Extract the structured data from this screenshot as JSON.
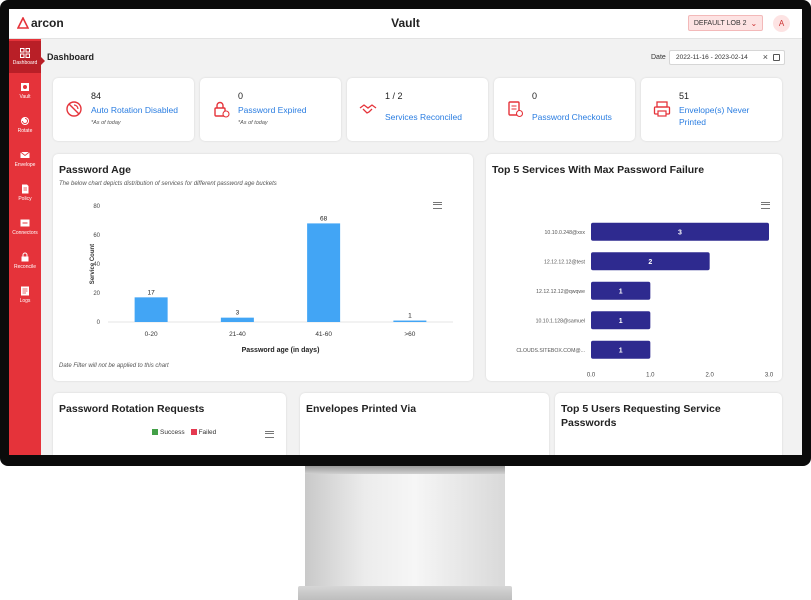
{
  "topbar": {
    "logo_text": "arcon",
    "title": "Vault",
    "lob_value": "DEFAULT LOB 2",
    "avatar_initial": "A"
  },
  "sidebar": {
    "items": [
      {
        "label": "Dashboard",
        "icon": "grid-icon"
      },
      {
        "label": "Vault",
        "icon": "vault-icon"
      },
      {
        "label": "Rotate",
        "icon": "rotate-icon"
      },
      {
        "label": "Envelope",
        "icon": "envelope-icon"
      },
      {
        "label": "Policy",
        "icon": "policy-icon"
      },
      {
        "label": "Connectors",
        "icon": "connectors-icon"
      },
      {
        "label": "Reconcile",
        "icon": "lock-icon"
      },
      {
        "label": "Logs",
        "icon": "logs-icon"
      }
    ]
  },
  "breadcrumb": "Dashboard",
  "date_filter": {
    "label": "Date",
    "value": "2022-11-16 - 2023-02-14"
  },
  "stats": [
    {
      "value": "84",
      "title": "Auto Rotation Disabled",
      "note": "*As of today",
      "icon": "no-rotation-icon"
    },
    {
      "value": "0",
      "title": "Password Expired",
      "note": "*As of today",
      "icon": "expired-lock-icon"
    },
    {
      "value": "1 / 2",
      "title": "Services Reconciled",
      "note": "",
      "icon": "handshake-icon"
    },
    {
      "value": "0",
      "title": "Password Checkouts",
      "note": "",
      "icon": "checkout-icon"
    },
    {
      "value": "51",
      "title": "Envelope(s) Never Printed",
      "note": "",
      "icon": "printer-icon"
    }
  ],
  "password_age": {
    "title": "Password Age",
    "subtitle": "The below chart depicts distribution of services for different password age buckets",
    "footnote": "Date Filter will not be applied to this chart"
  },
  "top_services": {
    "title": "Top 5 Services With Max Password Failure"
  },
  "bottom_panels": {
    "rotation_title": "Password Rotation Requests",
    "legend_success": "Success",
    "legend_failed": "Failed",
    "envelopes_title": "Envelopes Printed Via",
    "users_title": "Top 5 Users Requesting Service Passwords"
  },
  "colors": {
    "accent_red": "#e5333a",
    "bar_blue": "#42a5f5",
    "bar_navy": "#2e2a8f",
    "link_blue": "#2a7de1",
    "success": "#43a047",
    "failed": "#e53950"
  },
  "chart_data": [
    {
      "type": "bar",
      "categories": [
        "0-20",
        "21-40",
        "41-60",
        ">60"
      ],
      "values": [
        17,
        3,
        68,
        1
      ],
      "xlabel": "Password age (in days)",
      "ylabel": "Service Count",
      "ylim": [
        0,
        80
      ],
      "yticks": [
        0,
        20,
        40,
        60,
        80
      ],
      "grid": false
    },
    {
      "type": "bar",
      "orientation": "horizontal",
      "categories": [
        "10.10.0.248@xxx",
        "12.12.12.12@test",
        "12.12.12.12@qwqwe",
        "10.10.1.128@samuel",
        "CLOUDS.SITEBOX.COM@..."
      ],
      "values": [
        3,
        2,
        1,
        1,
        1
      ],
      "xlim": [
        0,
        3
      ],
      "xticks": [
        "0.0",
        "1.0",
        "2.0",
        "3.0"
      ],
      "grid": false
    }
  ]
}
